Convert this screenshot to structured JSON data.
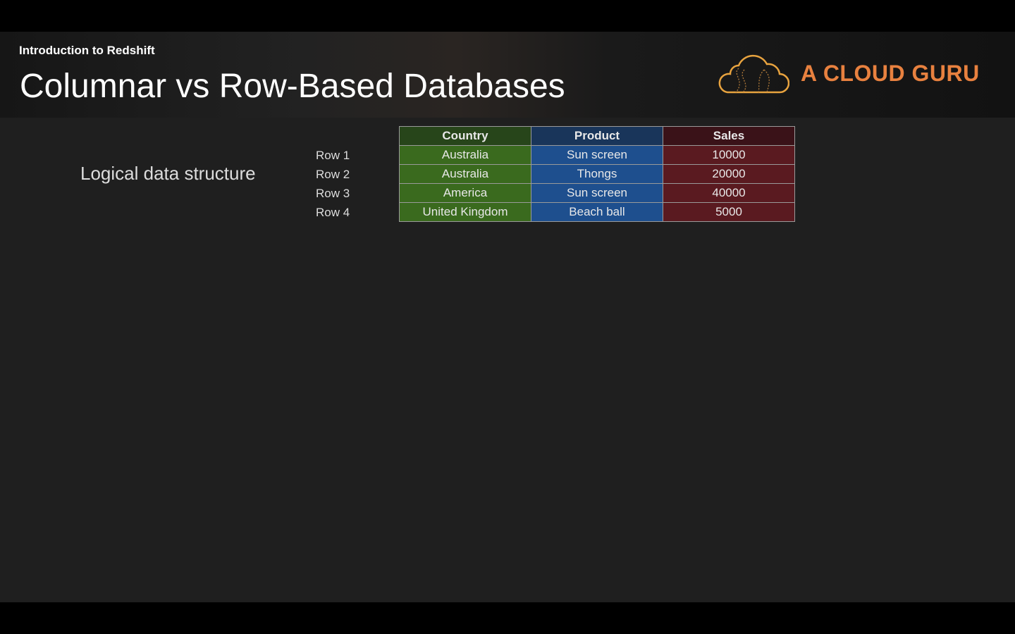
{
  "header": {
    "subtitle": "Introduction to Redshift",
    "title": "Columnar vs Row-Based Databases",
    "logo_text": "A CLOUD GURU"
  },
  "colors": {
    "brand": "#e8813f",
    "country": "#3a6a1e",
    "product": "#1e4f8e",
    "sales": "#5a1a20"
  },
  "main": {
    "label": "Logical data structure",
    "row_labels": [
      "Row 1",
      "Row 2",
      "Row 3",
      "Row 4"
    ],
    "table": {
      "columns": [
        "Country",
        "Product",
        "Sales"
      ],
      "rows": [
        [
          "Australia",
          "Sun screen",
          "10000"
        ],
        [
          "Australia",
          "Thongs",
          "20000"
        ],
        [
          "America",
          "Sun screen",
          "40000"
        ],
        [
          "United Kingdom",
          "Beach ball",
          "5000"
        ]
      ]
    }
  }
}
